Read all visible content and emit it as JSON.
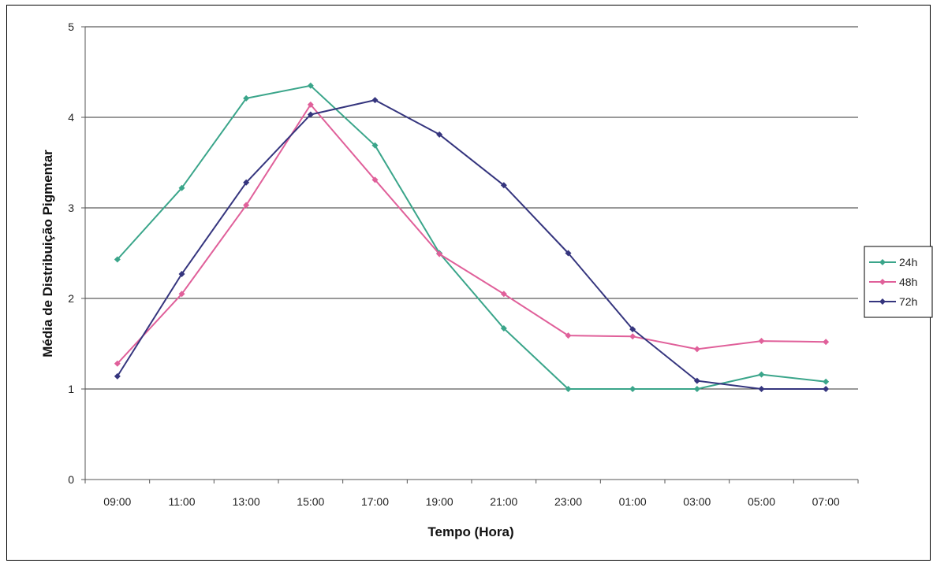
{
  "chart_data": {
    "type": "line",
    "title": "",
    "xlabel": "Tempo (Hora)",
    "ylabel": "Média de Distribuição Pigmentar",
    "categories": [
      "09:00",
      "11:00",
      "13:00",
      "15:00",
      "17:00",
      "19:00",
      "21:00",
      "23:00",
      "01:00",
      "03:00",
      "05:00",
      "07:00"
    ],
    "ylim": [
      0,
      5
    ],
    "yticks": [
      "0",
      "1",
      "2",
      "3",
      "4",
      "5"
    ],
    "grid": true,
    "legend_position": "right",
    "series": [
      {
        "name": "24h",
        "color": "#3aa58a",
        "values": [
          2.43,
          3.22,
          4.21,
          4.35,
          3.69,
          2.5,
          1.67,
          1.0,
          1.0,
          1.0,
          1.16,
          1.08
        ]
      },
      {
        "name": "48h",
        "color": "#e0609a",
        "values": [
          1.28,
          2.05,
          3.03,
          4.14,
          3.31,
          2.49,
          2.05,
          1.59,
          1.58,
          1.44,
          1.53,
          1.52
        ]
      },
      {
        "name": "72h",
        "color": "#35357e",
        "values": [
          1.14,
          2.27,
          3.28,
          4.03,
          4.19,
          3.81,
          3.25,
          2.5,
          1.66,
          1.09,
          1.0,
          1.0
        ]
      }
    ]
  }
}
